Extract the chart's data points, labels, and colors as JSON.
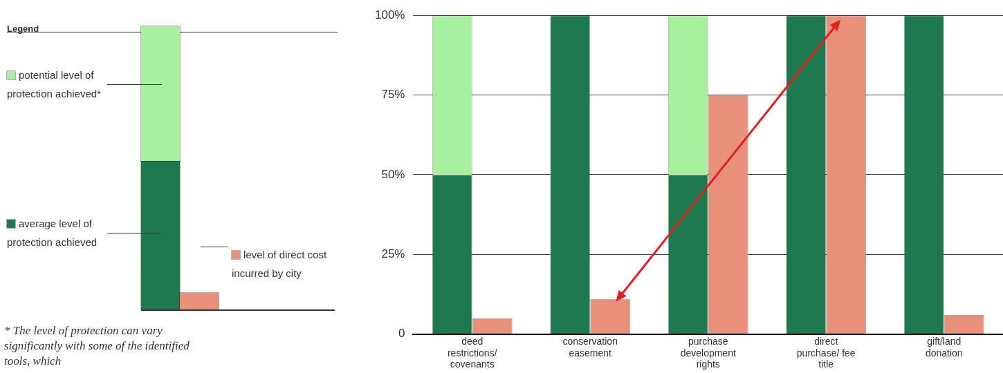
{
  "chart_data": {
    "type": "bar",
    "categories": [
      "deed restrictions/ covenants",
      "conservation easement",
      "purchase development rights",
      "direct purchase/ fee title",
      "gift/land donation"
    ],
    "series": [
      {
        "name": "average level of protection achieved",
        "color": "#1e7a4e",
        "values": [
          50,
          100,
          50,
          100,
          100
        ]
      },
      {
        "name": "potential level of protection achieved*",
        "color": "#a8f0a0",
        "values": [
          50,
          null,
          50,
          null,
          null
        ],
        "base": [
          50,
          null,
          50,
          null,
          null
        ]
      },
      {
        "name": "level of direct cost incurred by city",
        "color": "#e8907a",
        "values": [
          5,
          11,
          75,
          100,
          6
        ]
      }
    ],
    "legend_title": "Legend",
    "legend": "left",
    "ylim": [
      0,
      100
    ],
    "yticks": [
      0,
      {
        "value": 25,
        "label": "25%"
      },
      {
        "value": 50,
        "label": "50%"
      },
      {
        "value": 75,
        "label": "75%"
      },
      {
        "value": 100,
        "label": "100%"
      }
    ],
    "grid": "y",
    "annotations": [
      "* The level of protection can vary significantly with some of the identified tools, which"
    ]
  }
}
